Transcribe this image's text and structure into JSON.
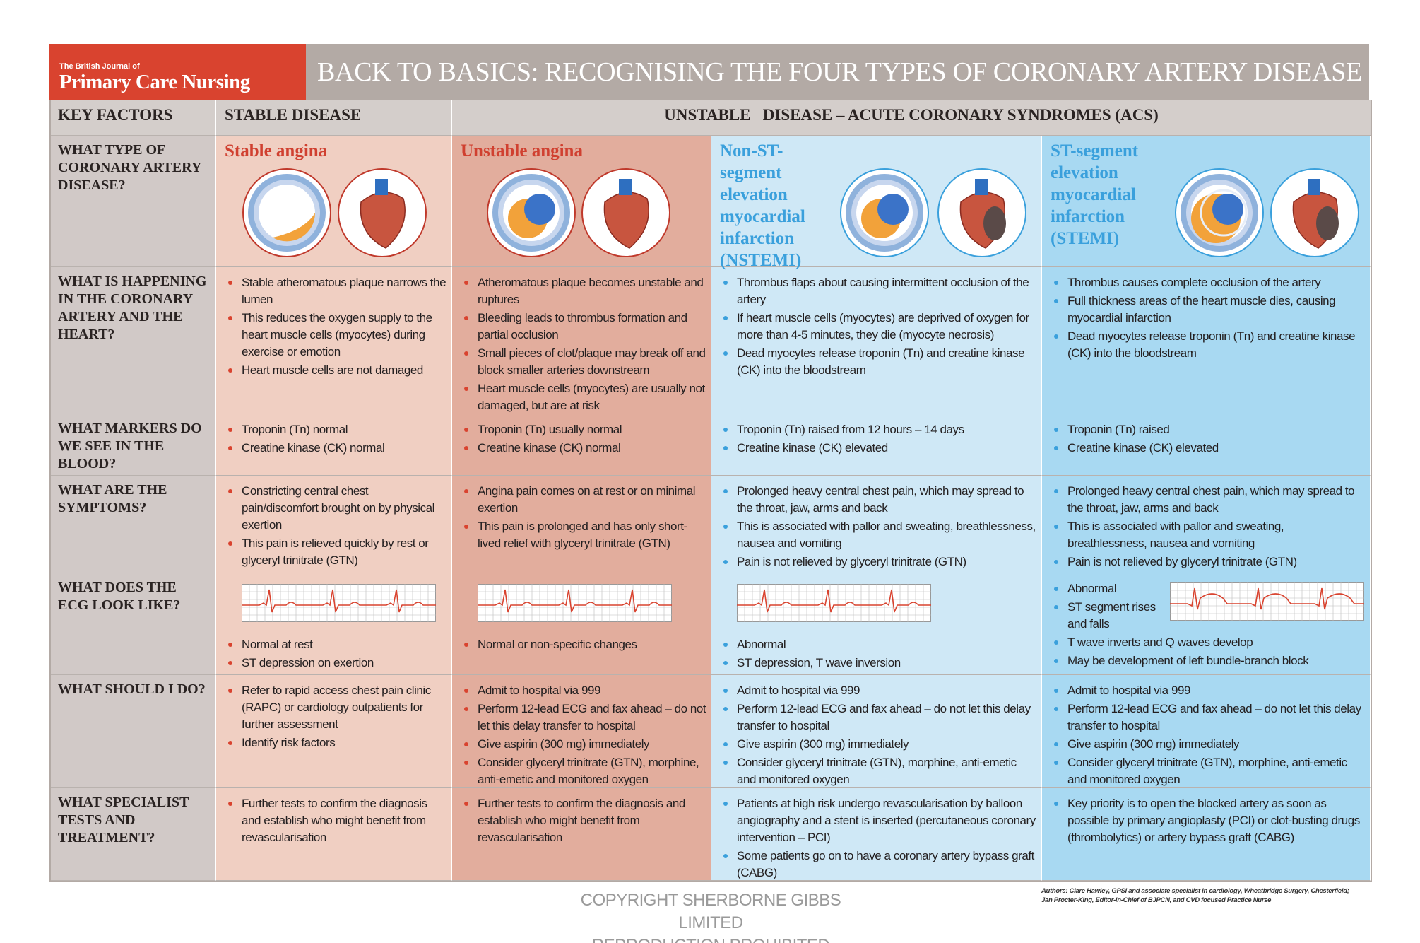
{
  "header": {
    "journal_small": "The British Journal of",
    "journal_name": "Primary Care Nursing",
    "title": "BACK TO BASICS: RECOGNISING THE FOUR TYPES OF CORONARY ARTERY DISEASE"
  },
  "column_headers": [
    "KEY FACTORS",
    "STABLE DISEASE",
    "UNSTABLE   DISEASE – ACUTE CORONARY SYNDROMES (ACS)"
  ],
  "rows": [
    {
      "label": "WHAT TYPE OF CORONARY ARTERY DISEASE?",
      "cells": [
        "Stable angina",
        "Unstable angina",
        "Non-ST-segment elevation myocardial infarction (NSTEMI)",
        "ST-segment elevation myocardial infarction (STEMI)"
      ]
    },
    {
      "label": "WHAT IS HAPPENING IN THE CORONARY ARTERY AND THE HEART?",
      "cells": [
        [
          "Stable atheromatous plaque narrows the lumen",
          "This reduces the oxygen supply to the heart muscle cells (myocytes) during exercise or emotion",
          "Heart muscle cells are not damaged"
        ],
        [
          "Atheromatous plaque becomes unstable and ruptures",
          "Bleeding leads to thrombus formation and partial occlusion",
          "Small pieces of clot/plaque may break off and block smaller arteries downstream",
          "Heart muscle cells (myocytes) are usually not damaged, but are at risk"
        ],
        [
          "Thrombus flaps about causing intermittent occlusion of the artery",
          "If heart muscle cells (myocytes) are deprived of oxygen for more than 4-5 minutes, they die (myocyte necrosis)",
          "Dead myocytes release troponin (Tn) and creatine kinase (CK) into the bloodstream"
        ],
        [
          "Thrombus causes complete occlusion of the artery",
          "Full thickness areas of the heart muscle dies, causing myocardial infarction",
          "Dead myocytes release troponin (Tn) and creatine kinase (CK) into the bloodstream"
        ]
      ]
    },
    {
      "label": "WHAT MARKERS DO WE SEE IN THE BLOOD?",
      "cells": [
        [
          "Troponin (Tn) normal",
          "Creatine kinase (CK) normal"
        ],
        [
          "Troponin (Tn) usually normal",
          "Creatine kinase (CK) normal"
        ],
        [
          "Troponin (Tn) raised from 12 hours – 14 days",
          "Creatine kinase (CK) elevated"
        ],
        [
          "Troponin (Tn) raised",
          "Creatine kinase (CK) elevated"
        ]
      ]
    },
    {
      "label": "WHAT ARE THE SYMPTOMS?",
      "cells": [
        [
          "Constricting central chest pain/discomfort brought on by physical exertion",
          "This pain is relieved quickly by rest or glyceryl trinitrate (GTN)"
        ],
        [
          "Angina pain comes on at rest or on minimal exertion",
          "This pain is prolonged and has only short-lived relief with glyceryl trinitrate (GTN)"
        ],
        [
          "Prolonged heavy central chest pain, which may spread to the throat, jaw, arms and back",
          "This is associated with pallor and sweating, breathlessness, nausea and vomiting",
          "Pain is not relieved by glyceryl trinitrate (GTN)"
        ],
        [
          "Prolonged heavy central chest pain, which may spread to the throat, jaw, arms and back",
          "This is associated with pallor and sweating, breathlessness, nausea and vomiting",
          "Pain is not relieved by glyceryl trinitrate (GTN)"
        ]
      ]
    },
    {
      "label": "WHAT DOES THE ECG LOOK LIKE?",
      "cells": [
        [
          "Normal at rest",
          "ST depression on exertion"
        ],
        [
          "Normal or non-specific changes"
        ],
        [
          "Abnormal",
          "ST depression, T wave inversion"
        ],
        [
          "Abnormal",
          "ST segment rises and falls",
          "T wave inverts and Q waves develop",
          "May be development of left bundle-branch block"
        ]
      ]
    },
    {
      "label": "WHAT SHOULD I DO?",
      "cells": [
        [
          "Refer to rapid access chest pain clinic (RAPC) or cardiology outpatients for further assessment",
          "Identify risk factors"
        ],
        [
          "Admit to hospital via 999",
          "Perform 12-lead ECG and fax ahead – do not let this delay transfer to hospital",
          "Give aspirin (300 mg) immediately",
          "Consider glyceryl trinitrate (GTN), morphine, anti-emetic and monitored oxygen"
        ],
        [
          "Admit to hospital via 999",
          "Perform 12-lead ECG and fax ahead – do not let this delay transfer to hospital",
          "Give aspirin (300 mg) immediately",
          "Consider glyceryl trinitrate (GTN), morphine, anti-emetic and monitored oxygen"
        ],
        [
          "Admit to hospital via 999",
          "Perform 12-lead ECG and fax ahead – do not let this delay transfer to hospital",
          "Give aspirin (300 mg) immediately",
          "Consider glyceryl trinitrate (GTN), morphine, anti-emetic and monitored oxygen"
        ]
      ]
    },
    {
      "label": "WHAT SPECIALIST TESTS AND TREATMENT?",
      "cells": [
        [
          "Further tests to confirm the diagnosis and establish who might benefit from revascularisation"
        ],
        [
          "Further tests to confirm the diagnosis and establish who might benefit from revascularisation"
        ],
        [
          "Patients at high risk undergo revascularisation by balloon angiography and a stent is inserted (percutaneous coronary intervention – PCI)",
          "Some patients go on to have a coronary artery bypass graft (CABG)"
        ],
        [
          "Key priority is to open the blocked artery as soon as possible by primary angioplasty (PCI) or clot-busting drugs (thrombolytics) or artery bypass graft (CABG)"
        ]
      ]
    }
  ],
  "footer": {
    "copyright": "COPYRIGHT SHERBORNE GIBBS LIMITED",
    "notice": "REPRODUCTION PROHIBITED",
    "authors": [
      "Authors: Clare Hawley, GPSI and associate specialist in cardiology, Wheatbridge Surgery, Chesterfield;",
      "Jan Procter-King, Editor-in-Chief of BJPCN, and CVD focused Practice Nurse"
    ]
  }
}
